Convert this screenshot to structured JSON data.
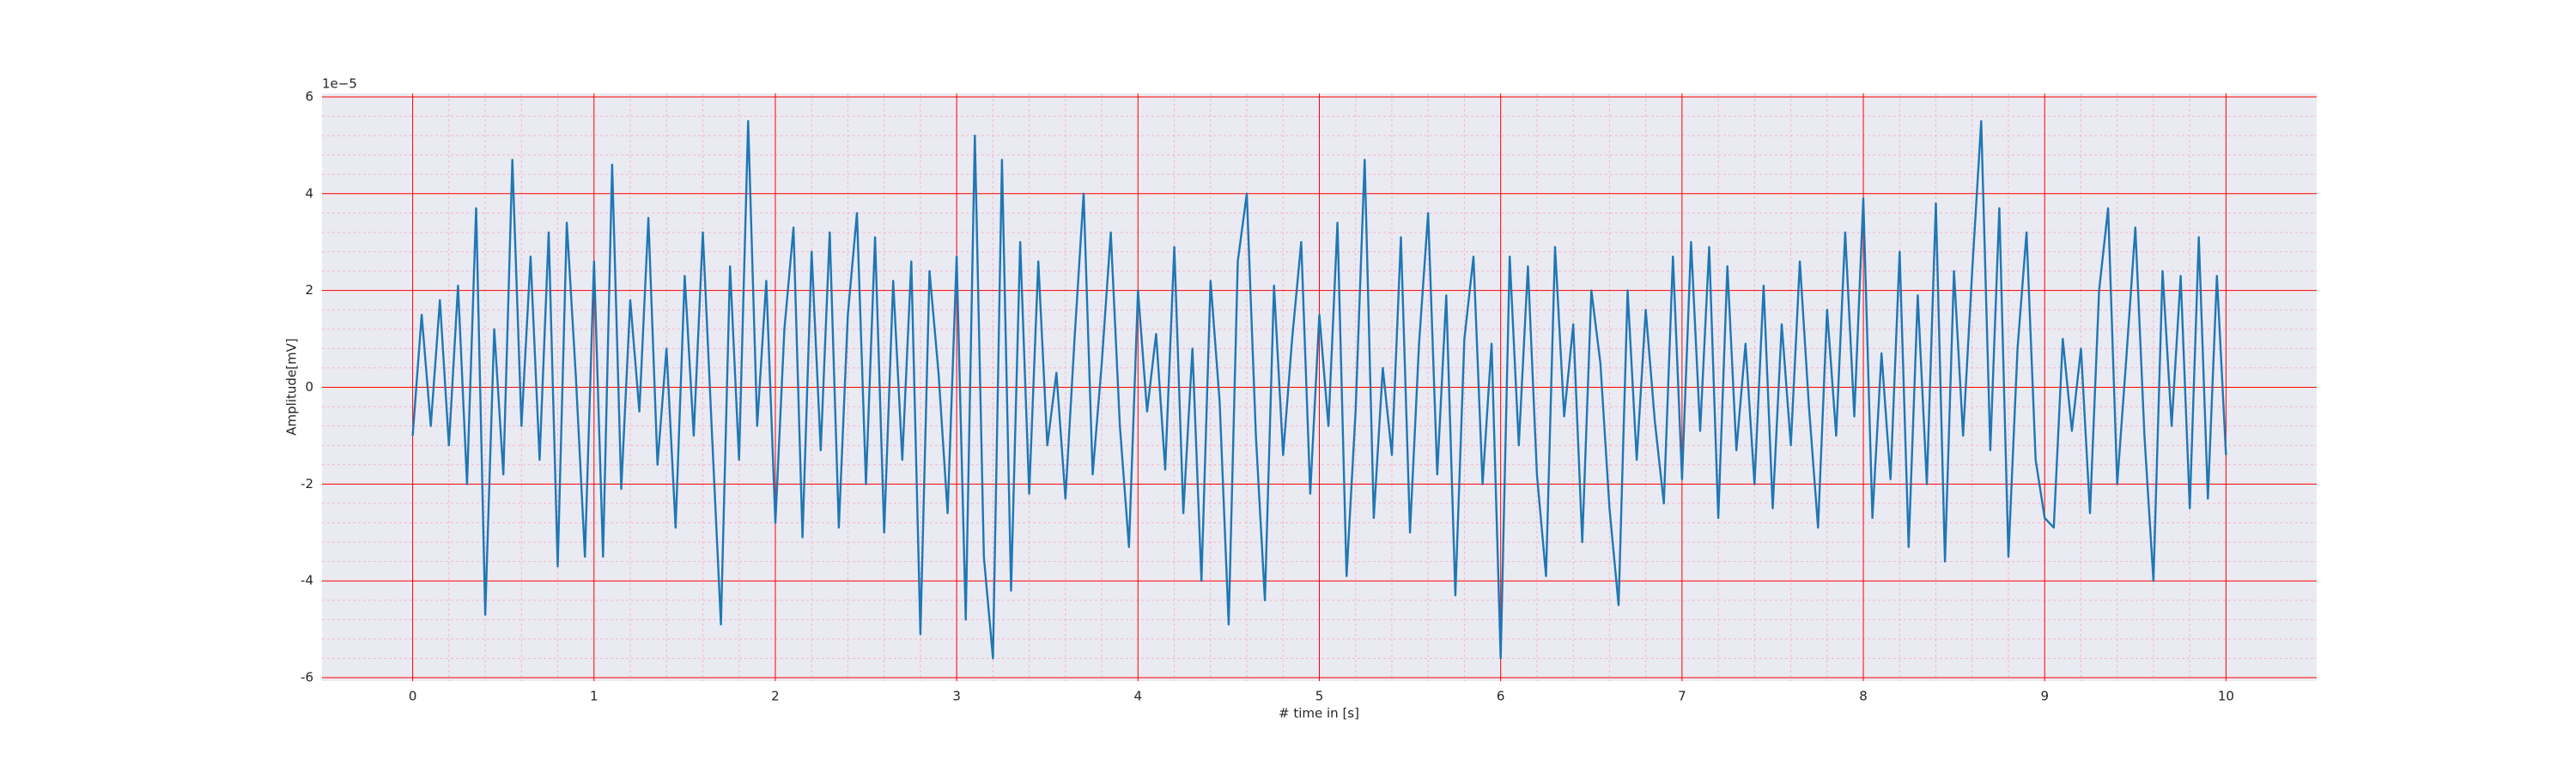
{
  "chart_data": {
    "type": "line",
    "xlabel": "# time in [s]",
    "ylabel": "Amplitude[mV]",
    "offset_label": "1e−5",
    "x": [
      0,
      0.05,
      0.1,
      0.15,
      0.2,
      0.25,
      0.3,
      0.35,
      0.4,
      0.45,
      0.5,
      0.55,
      0.6,
      0.65,
      0.7,
      0.75,
      0.8,
      0.85,
      0.9,
      0.95,
      1,
      1.05,
      1.1,
      1.15,
      1.2,
      1.25,
      1.3,
      1.35,
      1.4,
      1.45,
      1.5,
      1.55,
      1.6,
      1.65,
      1.7,
      1.75,
      1.8,
      1.85,
      1.9,
      1.95,
      2,
      2.05,
      2.1,
      2.15,
      2.2,
      2.25,
      2.3,
      2.35,
      2.4,
      2.45,
      2.5,
      2.55,
      2.6,
      2.65,
      2.7,
      2.75,
      2.8,
      2.85,
      2.9,
      2.95,
      3,
      3.05,
      3.1,
      3.15,
      3.2,
      3.25,
      3.3,
      3.35,
      3.4,
      3.45,
      3.5,
      3.55,
      3.6,
      3.65,
      3.7,
      3.75,
      3.8,
      3.85,
      3.9,
      3.95,
      4,
      4.05,
      4.1,
      4.15,
      4.2,
      4.25,
      4.3,
      4.35,
      4.4,
      4.45,
      4.5,
      4.55,
      4.6,
      4.65,
      4.7,
      4.75,
      4.8,
      4.85,
      4.9,
      4.95,
      5,
      5.05,
      5.1,
      5.15,
      5.2,
      5.25,
      5.3,
      5.35,
      5.4,
      5.45,
      5.5,
      5.55,
      5.6,
      5.65,
      5.7,
      5.75,
      5.8,
      5.85,
      5.9,
      5.95,
      6,
      6.05,
      6.1,
      6.15,
      6.2,
      6.25,
      6.3,
      6.35,
      6.4,
      6.45,
      6.5,
      6.55,
      6.6,
      6.65,
      6.7,
      6.75,
      6.8,
      6.85,
      6.9,
      6.95,
      7,
      7.05,
      7.1,
      7.15,
      7.2,
      7.25,
      7.3,
      7.35,
      7.4,
      7.45,
      7.5,
      7.55,
      7.6,
      7.65,
      7.7,
      7.75,
      7.8,
      7.85,
      7.9,
      7.95,
      8,
      8.05,
      8.1,
      8.15,
      8.2,
      8.25,
      8.3,
      8.35,
      8.4,
      8.45,
      8.5,
      8.55,
      8.6,
      8.65,
      8.7,
      8.75,
      8.8,
      8.85,
      8.9,
      8.95,
      9,
      9.05,
      9.1,
      9.15,
      9.2,
      9.25,
      9.3,
      9.35,
      9.4,
      9.45,
      9.5,
      9.55,
      9.6,
      9.65,
      9.7,
      9.75,
      9.8,
      9.85,
      9.9,
      9.95,
      10
    ],
    "series": [
      {
        "color": "#1f77b4",
        "values": [
          -1.0,
          1.5,
          -0.8,
          1.8,
          -1.2,
          2.1,
          -2.0,
          3.7,
          -4.7,
          1.2,
          -1.8,
          4.7,
          -0.8,
          2.7,
          -1.5,
          3.2,
          -3.7,
          3.4,
          0.2,
          -3.5,
          2.6,
          -3.5,
          4.6,
          -2.1,
          1.8,
          -0.5,
          3.5,
          -1.6,
          0.8,
          -2.9,
          2.3,
          -1.0,
          3.2,
          -0.9,
          -4.9,
          2.5,
          -1.5,
          5.5,
          -0.8,
          2.2,
          -2.8,
          1.2,
          3.3,
          -3.1,
          2.8,
          -1.3,
          3.2,
          -2.9,
          1.5,
          3.6,
          -2.0,
          3.1,
          -3.0,
          2.2,
          -1.5,
          2.6,
          -5.1,
          2.4,
          0.3,
          -2.6,
          2.7,
          -4.8,
          5.2,
          -3.5,
          -5.6,
          4.7,
          -4.2,
          3.0,
          -2.2,
          2.6,
          -1.2,
          0.3,
          -2.3,
          1.0,
          4.0,
          -1.8,
          0.5,
          3.2,
          -0.8,
          -3.3,
          2.0,
          -0.5,
          1.1,
          -1.7,
          2.9,
          -2.6,
          0.8,
          -4.0,
          2.2,
          -0.3,
          -4.9,
          2.6,
          4.0,
          -1.0,
          -4.4,
          2.1,
          -1.4,
          1.0,
          3.0,
          -2.2,
          1.5,
          -0.8,
          3.4,
          -3.9,
          -0.5,
          4.7,
          -2.7,
          0.4,
          -1.4,
          3.1,
          -3.0,
          0.9,
          3.6,
          -1.8,
          1.9,
          -4.3,
          1.0,
          2.7,
          -2.0,
          0.9,
          -5.6,
          2.7,
          -1.2,
          2.5,
          -1.8,
          -3.9,
          2.9,
          -0.6,
          1.3,
          -3.2,
          2.0,
          0.5,
          -2.5,
          -4.5,
          2.0,
          -1.5,
          1.6,
          -0.7,
          -2.4,
          2.7,
          -1.9,
          3.0,
          -0.9,
          2.9,
          -2.7,
          2.5,
          -1.3,
          0.9,
          -2.0,
          2.1,
          -2.5,
          1.3,
          -1.2,
          2.6,
          -0.4,
          -2.9,
          1.6,
          -1.0,
          3.2,
          -0.6,
          3.9,
          -2.7,
          0.7,
          -1.9,
          2.8,
          -3.3,
          1.9,
          -2.0,
          3.8,
          -3.6,
          2.4,
          -1.0,
          2.4,
          5.5,
          -1.3,
          3.7,
          -3.5,
          0.8,
          3.2,
          -1.5,
          -2.7,
          -2.9,
          1.0,
          -0.9,
          0.8,
          -2.6,
          2.0,
          3.7,
          -2.0,
          0.6,
          3.3,
          -1.0,
          -4.0,
          2.4,
          -0.8,
          2.3,
          -2.5,
          3.1,
          -2.3,
          2.3,
          -1.4
        ]
      }
    ],
    "xlim": [
      -0.5,
      10.5
    ],
    "xticks": [
      0,
      1,
      2,
      3,
      4,
      5,
      6,
      7,
      8,
      9,
      10
    ],
    "ylim": [
      -6.07,
      6.07
    ],
    "yticks": [
      -6,
      -4,
      -2,
      0,
      2,
      4,
      6
    ],
    "grid": true,
    "minor_grid": true,
    "background": "#eaeaf2",
    "grid_color": "#ff0000",
    "minor_grid_color": "#f4b6c6"
  }
}
